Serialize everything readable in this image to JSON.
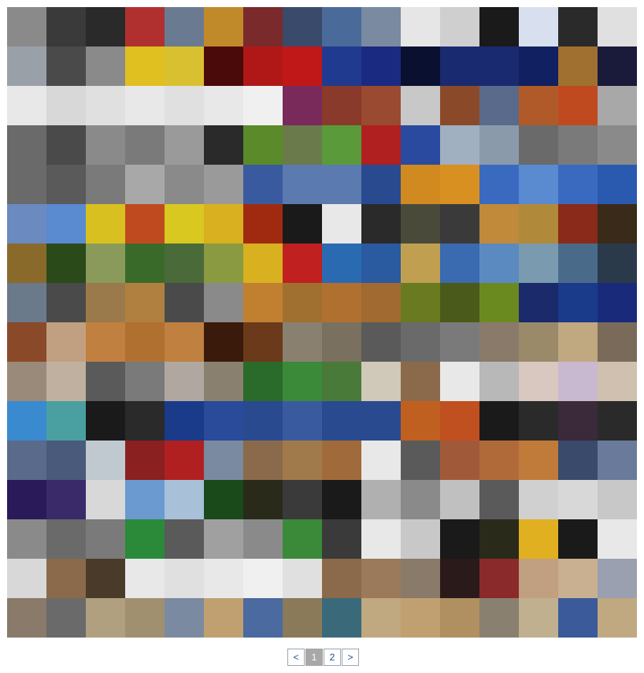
{
  "gallery": {
    "columns": 16,
    "rows": 16,
    "photo_colors": [
      [
        "#8a8a8a",
        "#3a3a3a",
        "#2a2a2a",
        "#b03030",
        "#6a7a90",
        "#c08a2a",
        "#7a2a2a",
        "#3a4a6a",
        "#4a6a9a",
        "#7a8aa0",
        "#e6e6e6",
        "#cfcfcf",
        "#1a1a1a",
        "#d8e0f0",
        "#2a2a2a",
        "#e0e0e0"
      ],
      [
        "#9aa0a8",
        "#4a4a4a",
        "#8a8a8a",
        "#e0c020",
        "#d8c030",
        "#4a0a0a",
        "#b01818",
        "#c01818",
        "#203a90",
        "#1a2a80",
        "#0a1030",
        "#1a2a70",
        "#1a2a70",
        "#102060",
        "#a07030",
        "#1a1a3a"
      ],
      [
        "#e8e8e8",
        "#d8d8d8",
        "#e0e0e0",
        "#e8e8e8",
        "#e0e0e0",
        "#e8e8e8",
        "#f0f0f0",
        "#7a2a5a",
        "#8a3a2a",
        "#9a4a30",
        "#c8c8c8",
        "#8a4a2a",
        "#5a6a8a",
        "#b05a2a",
        "#c04a20",
        "#a8a8a8"
      ],
      [
        "#6a6a6a",
        "#4a4a4a",
        "#8a8a8a",
        "#7a7a7a",
        "#9a9a9a",
        "#2a2a2a",
        "#5a8a2a",
        "#6a7a4a",
        "#5a9a3a",
        "#b02020",
        "#2a4aa0",
        "#a0b0c0",
        "#8a9aaa",
        "#6a6a6a",
        "#7a7a7a",
        "#8a8a8a"
      ],
      [
        "#6a6a6a",
        "#5a5a5a",
        "#7a7a7a",
        "#a8a8a8",
        "#8a8a8a",
        "#9a9a9a",
        "#3a5aa0",
        "#5a7ab0",
        "#5a7ab0",
        "#2a4a90",
        "#d08a20",
        "#d89020",
        "#3a6ac0",
        "#5a8ad0",
        "#3a6ac0",
        "#2a5ab0"
      ],
      [
        "#6a8ac0",
        "#5a8ad0",
        "#d8c020",
        "#c04a20",
        "#d8c820",
        "#d8b020",
        "#a02a10",
        "#1a1a1a",
        "#e8e8e8",
        "#2a2a2a",
        "#4a4a3a",
        "#3a3a3a",
        "#c08a3a",
        "#b08a3a",
        "#8a2a1a",
        "#3a2a1a"
      ],
      [
        "#8a6a2a",
        "#2a4a1a",
        "#8a9a5a",
        "#3a6a2a",
        "#4a6a3a",
        "#8a9a40",
        "#d8b020",
        "#c02020",
        "#2a6ab0",
        "#2a5aa0",
        "#c0a050",
        "#3a6ab0",
        "#5a8ac0",
        "#7a9ab0",
        "#4a6a8a",
        "#2a3a4a"
      ],
      [
        "#6a7a8a",
        "#4a4a4a",
        "#9a7a4a",
        "#b08040",
        "#4a4a4a",
        "#8a8a8a",
        "#c08030",
        "#a07030",
        "#b07030",
        "#a06a30",
        "#6a7a20",
        "#4a5a1a",
        "#6a8a20",
        "#1a2a6a",
        "#1a3a8a",
        "#1a2a7a"
      ],
      [
        "#8a4a2a",
        "#c0a080",
        "#c08040",
        "#b07030",
        "#c08040",
        "#3a1a0a",
        "#6a3a1a",
        "#8a8070",
        "#7a7060",
        "#5a5a5a",
        "#6a6a6a",
        "#7a7a7a",
        "#8a7a6a",
        "#9a8a6a",
        "#c0a880",
        "#7a6a5a"
      ],
      [
        "#9a8a7a",
        "#c0b0a0",
        "#5a5a5a",
        "#7a7a7a",
        "#b0a8a0",
        "#8a8070",
        "#2a6a2a",
        "#3a8a3a",
        "#4a7a3a",
        "#d0c8b8",
        "#8a6a4a",
        "#e8e8e8",
        "#b8b8b8",
        "#d8c8c0",
        "#c8b8d0",
        "#d0c0b0"
      ],
      [
        "#3a8ad0",
        "#4aa0a0",
        "#1a1a1a",
        "#2a2a2a",
        "#1a3a8a",
        "#2a4a9a",
        "#2a4a90",
        "#3a5aa0",
        "#2a4a90",
        "#2a4a90",
        "#c06020",
        "#c05020",
        "#1a1a1a",
        "#2a2a2a",
        "#3a2a3a",
        "#2a2a2a"
      ],
      [
        "#5a6a8a",
        "#4a5a7a",
        "#c0c8d0",
        "#8a2020",
        "#b02020",
        "#7a8aa0",
        "#8a6a4a",
        "#a07a4a",
        "#a06a3a",
        "#e8e8e8",
        "#5a5a5a",
        "#a05a3a",
        "#b06a3a",
        "#c07a3a",
        "#3a4a6a",
        "#6a7a9a"
      ],
      [
        "#2a1a5a",
        "#3a2a6a",
        "#d8d8d8",
        "#6a9ad0",
        "#a8c0d8",
        "#1a4a1a",
        "#2a2a1a",
        "#3a3a3a",
        "#1a1a1a",
        "#b0b0b0",
        "#8a8a8a",
        "#c0c0c0",
        "#5a5a5a",
        "#d0d0d0",
        "#d8d8d8",
        "#c8c8c8"
      ],
      [
        "#8a8a8a",
        "#6a6a6a",
        "#7a7a7a",
        "#2a8a3a",
        "#5a5a5a",
        "#a0a0a0",
        "#8a8a8a",
        "#3a8a3a",
        "#3a3a3a",
        "#e8e8e8",
        "#c8c8c8",
        "#1a1a1a",
        "#2a2a1a",
        "#e0b020",
        "#1a1a1a",
        "#e8e8e8"
      ],
      [
        "#d8d8d8",
        "#8a6a4a",
        "#4a3a2a",
        "#e8e8e8",
        "#e0e0e0",
        "#e8e8e8",
        "#f0f0f0",
        "#e0e0e0",
        "#8a6a4a",
        "#9a7a5a",
        "#8a7a6a",
        "#2a1a1a",
        "#8a2a2a",
        "#c0a080",
        "#c8b090",
        "#9aa0b0"
      ],
      [
        "#8a7a6a",
        "#6a6a6a",
        "#b0a080",
        "#a09070",
        "#7a8aa0",
        "#c0a070",
        "#4a6aa0",
        "#8a7a5a",
        "#3a6a7a",
        "#c0a880",
        "#c0a070",
        "#b09060",
        "#8a8070",
        "#c0b090",
        "#3a5a9a",
        "#c0a880"
      ]
    ]
  },
  "pagination": {
    "prev": "<",
    "pages": [
      "1",
      "2"
    ],
    "current": "1",
    "next": ">"
  }
}
